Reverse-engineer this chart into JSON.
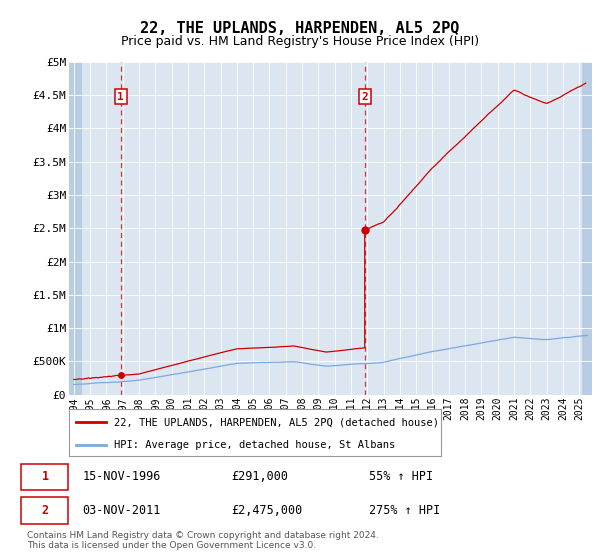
{
  "title": "22, THE UPLANDS, HARPENDEN, AL5 2PQ",
  "subtitle": "Price paid vs. HM Land Registry's House Price Index (HPI)",
  "ylim": [
    0,
    5000000
  ],
  "yticks": [
    0,
    500000,
    1000000,
    1500000,
    2000000,
    2500000,
    3000000,
    3500000,
    4000000,
    4500000,
    5000000
  ],
  "ytick_labels": [
    "£0",
    "£500K",
    "£1M",
    "£1.5M",
    "£2M",
    "£2.5M",
    "£3M",
    "£3.5M",
    "£4M",
    "£4.5M",
    "£5M"
  ],
  "xlim_start": 1993.7,
  "xlim_end": 2025.8,
  "bg_color": "#dce6f1",
  "hatch_color": "#b8cce4",
  "grid_color": "#ffffff",
  "sale1_x": 1996.876,
  "sale1_y": 291000,
  "sale1_label": "1",
  "sale2_x": 2011.843,
  "sale2_y": 2475000,
  "sale2_label": "2",
  "legend_line1": "22, THE UPLANDS, HARPENDEN, AL5 2PQ (detached house)",
  "legend_line2": "HPI: Average price, detached house, St Albans",
  "annotation1_date": "15-NOV-1996",
  "annotation1_price": "£291,000",
  "annotation1_hpi": "55% ↑ HPI",
  "annotation2_date": "03-NOV-2011",
  "annotation2_price": "£2,475,000",
  "annotation2_hpi": "275% ↑ HPI",
  "footer": "Contains HM Land Registry data © Crown copyright and database right 2024.\nThis data is licensed under the Open Government Licence v3.0.",
  "sale_color": "#cc0000",
  "hpi_color": "#7aaadd",
  "title_fontsize": 11,
  "subtitle_fontsize": 9,
  "hatch_left_end": 1994.5,
  "hatch_right_start": 2025.17
}
